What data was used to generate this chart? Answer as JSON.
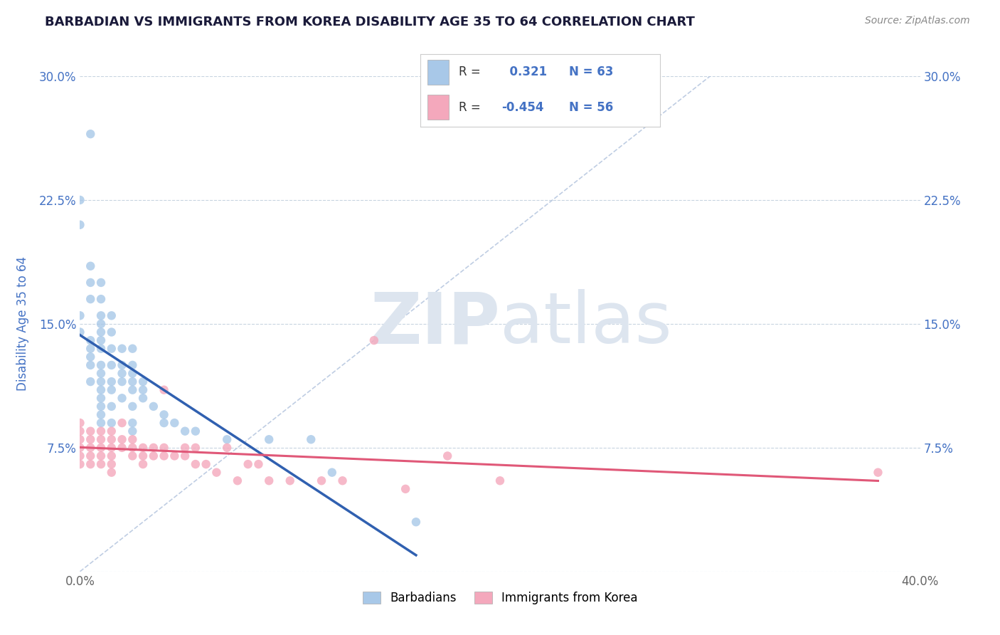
{
  "title": "BARBADIAN VS IMMIGRANTS FROM KOREA DISABILITY AGE 35 TO 64 CORRELATION CHART",
  "source": "Source: ZipAtlas.com",
  "ylabel": "Disability Age 35 to 64",
  "xlim": [
    0.0,
    0.4
  ],
  "ylim": [
    0.0,
    0.3
  ],
  "yticks": [
    0.0,
    0.075,
    0.15,
    0.225,
    0.3
  ],
  "yticklabels": [
    "",
    "7.5%",
    "15.0%",
    "22.5%",
    "30.0%"
  ],
  "R_blue": 0.321,
  "N_blue": 63,
  "R_pink": -0.454,
  "N_pink": 56,
  "blue_color": "#a8c8e8",
  "pink_color": "#f4a8bc",
  "blue_line_color": "#3060b0",
  "pink_line_color": "#e05878",
  "diagonal_color": "#b8c8e0",
  "watermark_color": "#dde5ef",
  "blue_scatter_x": [
    0.005,
    0.0,
    0.0,
    0.005,
    0.005,
    0.005,
    0.0,
    0.0,
    0.005,
    0.005,
    0.005,
    0.005,
    0.005,
    0.01,
    0.01,
    0.01,
    0.01,
    0.01,
    0.01,
    0.01,
    0.01,
    0.01,
    0.01,
    0.01,
    0.01,
    0.01,
    0.01,
    0.01,
    0.015,
    0.015,
    0.015,
    0.015,
    0.015,
    0.015,
    0.015,
    0.015,
    0.02,
    0.02,
    0.02,
    0.02,
    0.02,
    0.025,
    0.025,
    0.025,
    0.025,
    0.025,
    0.025,
    0.025,
    0.025,
    0.03,
    0.03,
    0.03,
    0.035,
    0.04,
    0.04,
    0.045,
    0.05,
    0.055,
    0.07,
    0.09,
    0.11,
    0.12,
    0.16
  ],
  "blue_scatter_y": [
    0.265,
    0.225,
    0.21,
    0.185,
    0.175,
    0.165,
    0.155,
    0.145,
    0.14,
    0.135,
    0.13,
    0.125,
    0.115,
    0.175,
    0.165,
    0.155,
    0.15,
    0.145,
    0.14,
    0.135,
    0.125,
    0.12,
    0.115,
    0.11,
    0.105,
    0.1,
    0.095,
    0.09,
    0.155,
    0.145,
    0.135,
    0.125,
    0.115,
    0.11,
    0.1,
    0.09,
    0.135,
    0.125,
    0.12,
    0.115,
    0.105,
    0.135,
    0.125,
    0.12,
    0.115,
    0.11,
    0.1,
    0.09,
    0.085,
    0.115,
    0.11,
    0.105,
    0.1,
    0.095,
    0.09,
    0.09,
    0.085,
    0.085,
    0.08,
    0.08,
    0.08,
    0.06,
    0.03
  ],
  "pink_scatter_x": [
    0.0,
    0.0,
    0.0,
    0.0,
    0.0,
    0.0,
    0.005,
    0.005,
    0.005,
    0.005,
    0.005,
    0.01,
    0.01,
    0.01,
    0.01,
    0.01,
    0.015,
    0.015,
    0.015,
    0.015,
    0.015,
    0.015,
    0.02,
    0.02,
    0.02,
    0.025,
    0.025,
    0.025,
    0.03,
    0.03,
    0.03,
    0.035,
    0.035,
    0.04,
    0.04,
    0.04,
    0.045,
    0.05,
    0.05,
    0.055,
    0.055,
    0.06,
    0.065,
    0.07,
    0.075,
    0.08,
    0.085,
    0.09,
    0.1,
    0.115,
    0.125,
    0.14,
    0.155,
    0.175,
    0.2,
    0.38
  ],
  "pink_scatter_y": [
    0.09,
    0.085,
    0.08,
    0.075,
    0.07,
    0.065,
    0.085,
    0.08,
    0.075,
    0.07,
    0.065,
    0.085,
    0.08,
    0.075,
    0.07,
    0.065,
    0.085,
    0.08,
    0.075,
    0.07,
    0.065,
    0.06,
    0.09,
    0.08,
    0.075,
    0.08,
    0.075,
    0.07,
    0.075,
    0.07,
    0.065,
    0.075,
    0.07,
    0.11,
    0.075,
    0.07,
    0.07,
    0.075,
    0.07,
    0.075,
    0.065,
    0.065,
    0.06,
    0.075,
    0.055,
    0.065,
    0.065,
    0.055,
    0.055,
    0.055,
    0.055,
    0.14,
    0.05,
    0.07,
    0.055,
    0.06
  ],
  "legend_label_blue": "Barbadians",
  "legend_label_pink": "Immigrants from Korea",
  "title_color": "#1a1a3a",
  "tick_color_y": "#4472c4",
  "tick_color_x": "#666666"
}
